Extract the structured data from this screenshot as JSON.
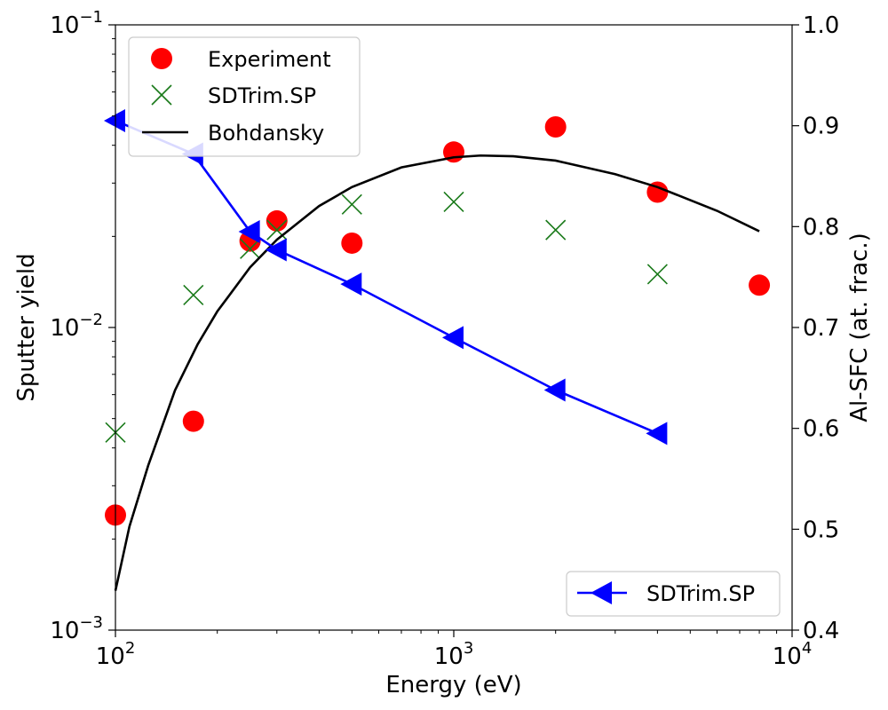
{
  "chart_data": {
    "type": "scatter",
    "xlabel": "Energy (eV)",
    "ylabel": "Sputter yield",
    "y2label": "Al-SFC (at. frac.)",
    "xscale": "log",
    "yscale": "log",
    "xlim": [
      100,
      10000
    ],
    "ylim": [
      0.001,
      0.1
    ],
    "y2lim": [
      0.4,
      1.0
    ],
    "x_ticks": [
      {
        "value": 100,
        "base": "10",
        "exp": "2"
      },
      {
        "value": 1000,
        "base": "10",
        "exp": "3"
      },
      {
        "value": 10000,
        "base": "10",
        "exp": "4"
      }
    ],
    "y_ticks": [
      {
        "value": 0.001,
        "base": "10",
        "exp": "−3"
      },
      {
        "value": 0.01,
        "base": "10",
        "exp": "−2"
      },
      {
        "value": 0.1,
        "base": "10",
        "exp": "−1"
      }
    ],
    "y2_ticks": [
      "0.4",
      "0.5",
      "0.6",
      "0.7",
      "0.8",
      "0.9",
      "1.0"
    ],
    "grid": false,
    "legend_main": {
      "placement": "top-left",
      "entries": [
        "Experiment",
        "SDTrim.SP",
        "Bohdansky"
      ]
    },
    "legend_secondary": {
      "placement": "bottom-right",
      "entries": [
        "SDTrim.SP"
      ]
    },
    "series": [
      {
        "name": "Experiment",
        "axis": "left",
        "marker": "circle",
        "color": "#ff0000",
        "x": [
          100,
          170,
          250,
          300,
          500,
          1000,
          2000,
          4000,
          8000
        ],
        "y": [
          0.0024,
          0.0049,
          0.0193,
          0.0225,
          0.019,
          0.038,
          0.046,
          0.028,
          0.0138
        ]
      },
      {
        "name": "SDTrim.SP",
        "axis": "left",
        "marker": "x",
        "color": "#1a7a1a",
        "x": [
          100,
          170,
          250,
          300,
          500,
          1000,
          2000,
          4000
        ],
        "y": [
          0.0045,
          0.0128,
          0.0182,
          0.021,
          0.0255,
          0.026,
          0.021,
          0.015
        ]
      },
      {
        "name": "Bohdansky",
        "axis": "left",
        "marker": "line",
        "color": "#000000",
        "x": [
          100,
          110,
          125,
          150,
          175,
          200,
          250,
          300,
          400,
          500,
          700,
          1000,
          1200,
          1500,
          2000,
          3000,
          4000,
          6000,
          8000
        ],
        "y": [
          0.00135,
          0.0022,
          0.0035,
          0.0062,
          0.0088,
          0.0113,
          0.0158,
          0.0195,
          0.0252,
          0.0291,
          0.0338,
          0.0365,
          0.037,
          0.0368,
          0.0356,
          0.0321,
          0.0291,
          0.0243,
          0.0208
        ]
      },
      {
        "name": "SDTrim.SP",
        "axis": "right",
        "marker": "triangle-left",
        "color": "#0000ff",
        "x": [
          100,
          170,
          250,
          300,
          500,
          1000,
          2000,
          4000
        ],
        "y": [
          0.905,
          0.872,
          0.795,
          0.777,
          0.743,
          0.69,
          0.638,
          0.595
        ]
      }
    ]
  }
}
